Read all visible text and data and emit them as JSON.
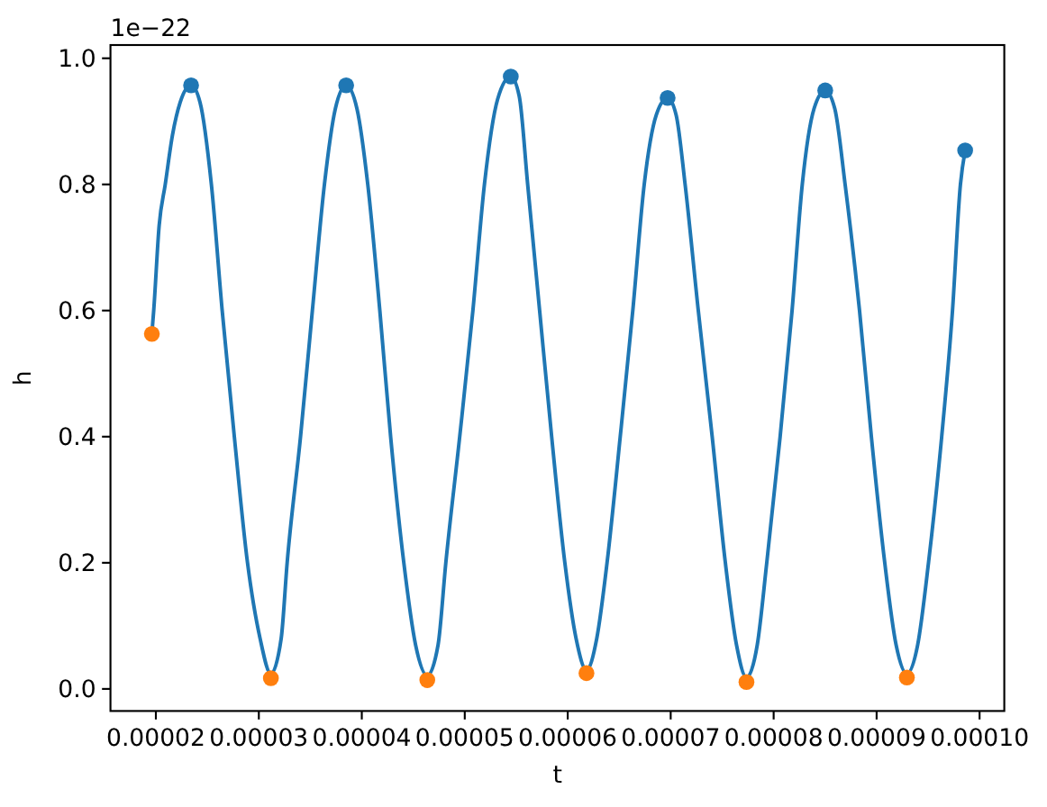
{
  "chart_data": {
    "type": "line",
    "xlabel": "t",
    "ylabel": "h",
    "annotations": [
      "1e−22"
    ],
    "xlim": [
      1.559e-05,
      0.0001024
    ],
    "xticks": [
      {
        "value": 2e-05,
        "label": "0.00002"
      },
      {
        "value": 3e-05,
        "label": "0.00003"
      },
      {
        "value": 4e-05,
        "label": "0.00004"
      },
      {
        "value": 5e-05,
        "label": "0.00005"
      },
      {
        "value": 6e-05,
        "label": "0.00006"
      },
      {
        "value": 7e-05,
        "label": "0.00007"
      },
      {
        "value": 8e-05,
        "label": "0.00008"
      },
      {
        "value": 9e-05,
        "label": "0.00009"
      },
      {
        "value": 0.0001,
        "label": "0.00010"
      }
    ],
    "ylim": [
      -0.035,
      1.021
    ],
    "yticks": [
      {
        "value": 0,
        "label": "0.0"
      },
      0.2,
      0.4,
      0.6,
      0.8,
      {
        "value": 1,
        "label": "1.0"
      }
    ],
    "series": [
      {
        "color": "#1f77b4",
        "x": [
          1.961e-05,
          1.979e-05,
          2.032e-05,
          2.091e-05,
          2.161e-05,
          2.236e-05,
          2.342e-05,
          2.429e-05,
          2.539e-05,
          2.644e-05,
          2.762e-05,
          2.89e-05,
          3.012e-05,
          3.117e-05,
          3.217e-05,
          3.275e-05,
          3.405e-05,
          3.52e-05,
          3.637e-05,
          3.743e-05,
          3.848e-05,
          3.953e-05,
          4.058e-05,
          4.175e-05,
          4.28e-05,
          4.408e-05,
          4.522e-05,
          4.636e-05,
          4.741e-05,
          4.816e-05,
          4.951e-05,
          5.079e-05,
          5.191e-05,
          5.319e-05,
          5.447e-05,
          5.529e-05,
          5.611e-05,
          5.727e-05,
          5.844e-05,
          5.972e-05,
          6.081e-05,
          6.182e-05,
          6.282e-05,
          6.382e-05,
          6.51e-05,
          6.632e-05,
          6.743e-05,
          6.86e-05,
          6.97e-05,
          7.053e-05,
          7.14e-05,
          7.268e-05,
          7.403e-05,
          7.531e-05,
          7.639e-05,
          7.736e-05,
          7.841e-05,
          7.933e-05,
          8.063e-05,
          8.179e-05,
          8.278e-05,
          8.392e-05,
          8.501e-05,
          8.594e-05,
          8.694e-05,
          8.834e-05,
          8.949e-05,
          9.079e-05,
          9.189e-05,
          9.294e-05,
          9.399e-05,
          9.504e-05,
          9.632e-05,
          9.737e-05,
          9.814e-05,
          9.86e-05
        ],
        "values": [
          0.563,
          0.6,
          0.735,
          0.8,
          0.878,
          0.93,
          0.957,
          0.93,
          0.8,
          0.6,
          0.4,
          0.2,
          0.08,
          0.024,
          0.08,
          0.2,
          0.4,
          0.6,
          0.8,
          0.92,
          0.957,
          0.92,
          0.8,
          0.6,
          0.4,
          0.2,
          0.07,
          0.021,
          0.07,
          0.2,
          0.4,
          0.6,
          0.8,
          0.935,
          0.971,
          0.94,
          0.8,
          0.6,
          0.4,
          0.2,
          0.08,
          0.03,
          0.08,
          0.2,
          0.4,
          0.6,
          0.8,
          0.91,
          0.937,
          0.91,
          0.8,
          0.6,
          0.4,
          0.2,
          0.07,
          0.018,
          0.07,
          0.2,
          0.4,
          0.6,
          0.8,
          0.92,
          0.949,
          0.92,
          0.8,
          0.6,
          0.4,
          0.2,
          0.07,
          0.024,
          0.07,
          0.2,
          0.4,
          0.6,
          0.8,
          0.854
        ]
      },
      {
        "type": "scatter",
        "marker": "circle",
        "color": "#1f77b4",
        "x": [
          2.342e-05,
          3.848e-05,
          5.447e-05,
          6.97e-05,
          8.501e-05,
          9.86e-05
        ],
        "values": [
          0.957,
          0.957,
          0.971,
          0.937,
          0.949,
          0.854
        ]
      },
      {
        "type": "scatter",
        "marker": "circle",
        "color": "#ff7f0e",
        "x": [
          1.961e-05,
          3.117e-05,
          4.636e-05,
          6.182e-05,
          7.736e-05,
          9.294e-05
        ],
        "values": [
          0.563,
          0.017,
          0.014,
          0.025,
          0.011,
          0.018
        ]
      }
    ]
  }
}
